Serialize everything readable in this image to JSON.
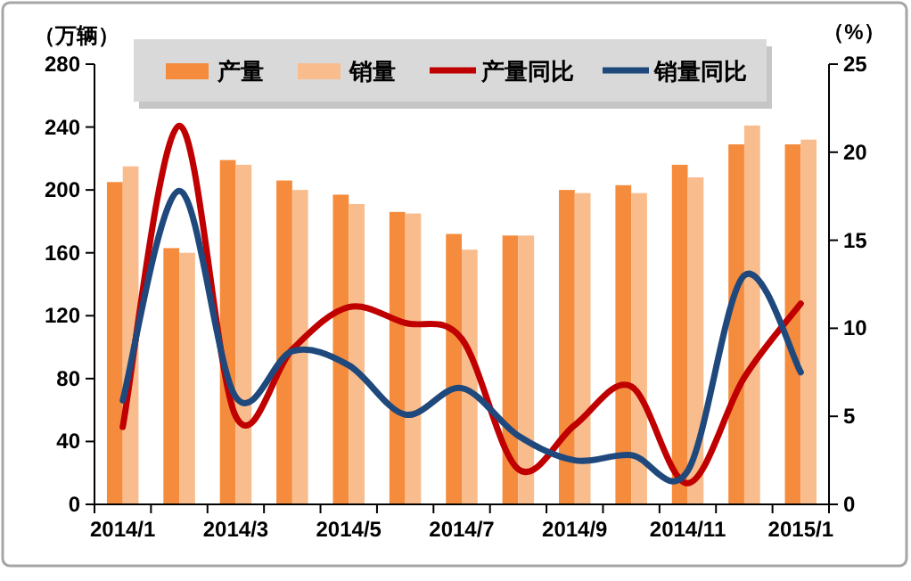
{
  "chart_data": {
    "type": "bar",
    "categories": [
      "2014/1",
      null,
      "2014/3",
      null,
      "2014/5",
      null,
      "2014/7",
      null,
      "2014/9",
      null,
      "2014/11",
      null,
      "2015/1"
    ],
    "ylabel": "（万辆）",
    "y2label": "（%）",
    "series": [
      {
        "name": "产量",
        "color": "#f58b3c",
        "values": [
          205,
          163,
          219,
          206,
          197,
          186,
          172,
          171,
          200,
          203,
          216,
          229,
          229
        ]
      },
      {
        "name": "销量",
        "color": "#f9bc8c",
        "values": [
          215,
          160,
          216,
          200,
          191,
          185,
          162,
          171,
          198,
          198,
          208,
          241,
          232
        ]
      },
      {
        "name": "产量同比",
        "type": "line",
        "axis": "y2",
        "color": "#c00000",
        "values": [
          4.4,
          21.5,
          5.0,
          8.8,
          11.2,
          10.3,
          9.4,
          2.0,
          4.5,
          6.7,
          1.2,
          7.2,
          11.4
        ]
      },
      {
        "name": "销量同比",
        "type": "line",
        "axis": "y2",
        "color": "#1f497d",
        "values": [
          5.9,
          17.8,
          6.1,
          8.7,
          7.9,
          5.1,
          6.6,
          3.9,
          2.5,
          2.8,
          1.9,
          13.0,
          7.5
        ]
      }
    ],
    "ylim": [
      0,
      280
    ],
    "yticks": [
      0,
      40,
      80,
      120,
      160,
      200,
      240,
      280
    ],
    "y2lim": [
      0,
      25
    ],
    "y2ticks": [
      0,
      5,
      10,
      15,
      20,
      25
    ],
    "legend": "top",
    "grid": false
  }
}
